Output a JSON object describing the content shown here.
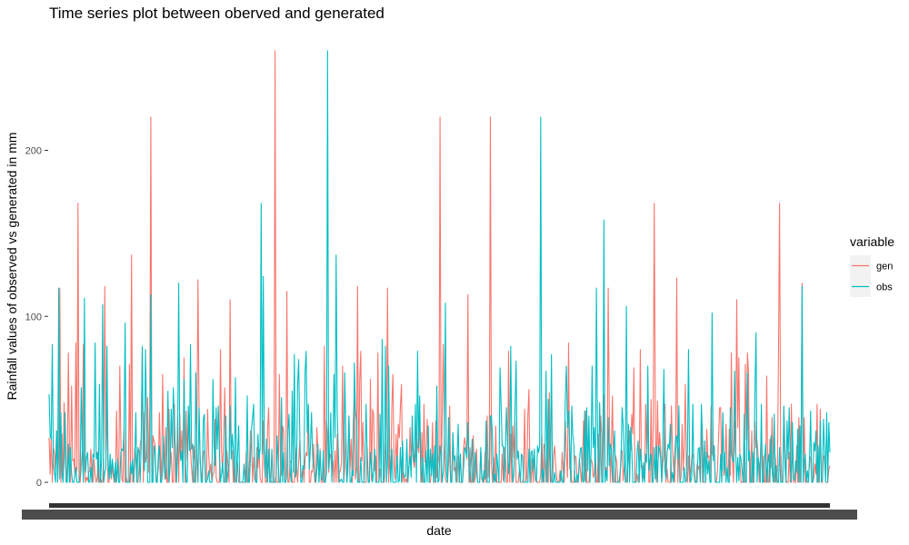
{
  "chart_data": {
    "type": "line",
    "title": "Time series plot between oberved and generated",
    "xlabel": "date",
    "ylabel": "Rainfall values of observed vs generated in mm",
    "ylim": [
      0,
      260
    ],
    "y_ticks": [
      0,
      100,
      200
    ],
    "x_tick_labels": "illegible (densely overplotted date labels)",
    "grid": false,
    "legend": {
      "title": "variable",
      "placement": "right",
      "entries": [
        "gen",
        "obs"
      ]
    },
    "n_points": 730,
    "series": [
      {
        "name": "gen",
        "color": "#F8766D",
        "peaks": [
          {
            "t": 0.014,
            "value": 117
          },
          {
            "t": 0.037,
            "value": 168
          },
          {
            "t": 0.071,
            "value": 118
          },
          {
            "t": 0.105,
            "value": 137
          },
          {
            "t": 0.131,
            "value": 220
          },
          {
            "t": 0.19,
            "value": 122
          },
          {
            "t": 0.232,
            "value": 110
          },
          {
            "t": 0.29,
            "value": 260
          },
          {
            "t": 0.305,
            "value": 115
          },
          {
            "t": 0.395,
            "value": 118
          },
          {
            "t": 0.434,
            "value": 117
          },
          {
            "t": 0.5,
            "value": 220
          },
          {
            "t": 0.536,
            "value": 113
          },
          {
            "t": 0.565,
            "value": 220
          },
          {
            "t": 0.716,
            "value": 117
          },
          {
            "t": 0.775,
            "value": 168
          },
          {
            "t": 0.804,
            "value": 123
          },
          {
            "t": 0.88,
            "value": 110
          },
          {
            "t": 0.936,
            "value": 168
          },
          {
            "t": 0.965,
            "value": 120
          }
        ]
      },
      {
        "name": "obs",
        "color": "#00BFC4",
        "peaks": [
          {
            "t": 0.012,
            "value": 117
          },
          {
            "t": 0.045,
            "value": 111
          },
          {
            "t": 0.068,
            "value": 107
          },
          {
            "t": 0.098,
            "value": 96
          },
          {
            "t": 0.131,
            "value": 113
          },
          {
            "t": 0.166,
            "value": 120
          },
          {
            "t": 0.272,
            "value": 168
          },
          {
            "t": 0.275,
            "value": 124
          },
          {
            "t": 0.356,
            "value": 260
          },
          {
            "t": 0.367,
            "value": 137
          },
          {
            "t": 0.426,
            "value": 86
          },
          {
            "t": 0.508,
            "value": 108
          },
          {
            "t": 0.63,
            "value": 220
          },
          {
            "t": 0.701,
            "value": 117
          },
          {
            "t": 0.711,
            "value": 158
          },
          {
            "t": 0.74,
            "value": 106
          },
          {
            "t": 0.849,
            "value": 102
          },
          {
            "t": 0.905,
            "value": 90
          },
          {
            "t": 0.964,
            "value": 118
          }
        ]
      }
    ]
  }
}
